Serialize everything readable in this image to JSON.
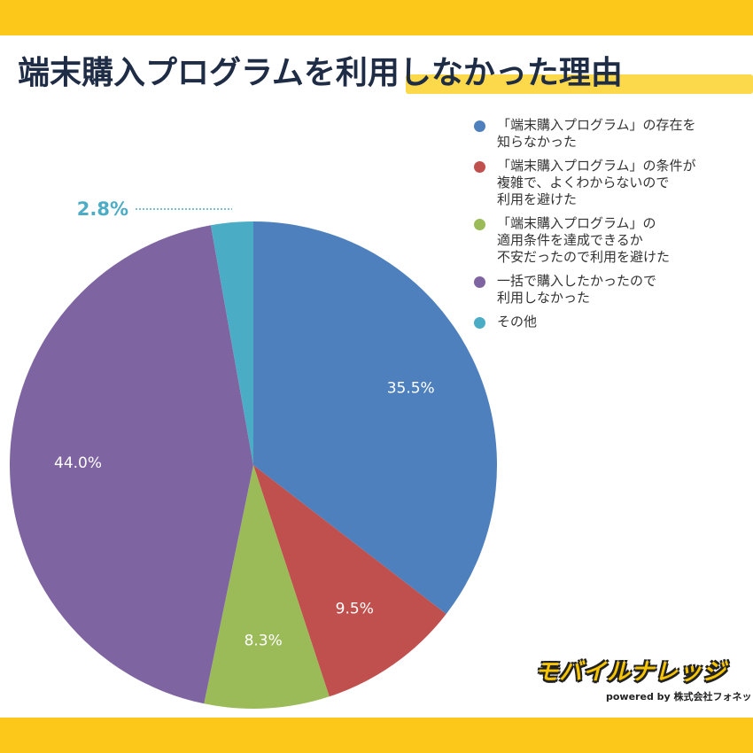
{
  "title": "端末購入プログラムを利用しなかった理由",
  "colors": {
    "band": "#fcc81a",
    "highlight": "#fcd94a",
    "title_text": "#1f2c45"
  },
  "logo": {
    "name": "モバイルナレッジ",
    "sub": "powered by 株式会社フォネット"
  },
  "chart_data": {
    "type": "pie",
    "start_angle_deg": 0,
    "direction": "clockwise",
    "legend_position": "right",
    "slices": [
      {
        "label": "「端末購入プログラム」の存在を\n知らなかった",
        "value": 35.5,
        "display": "35.5%",
        "color": "#4e80bd"
      },
      {
        "label": "「端末購入プログラム」の条件が\n複雑で、よくわからないので\n利用を避けた",
        "value": 9.5,
        "display": "9.5%",
        "color": "#c0504d"
      },
      {
        "label": "「端末購入プログラム」の\n適用条件を達成できるか\n不安だったので利用を避けた",
        "value": 8.3,
        "display": "8.3%",
        "color": "#9bbb59"
      },
      {
        "label": "一括で購入したかったので\n利用しなかった",
        "value": 44.0,
        "display": "44.0%",
        "color": "#7f64a2"
      },
      {
        "label": "その他",
        "value": 2.8,
        "display": "2.8%",
        "color": "#4aacc5"
      }
    ]
  }
}
